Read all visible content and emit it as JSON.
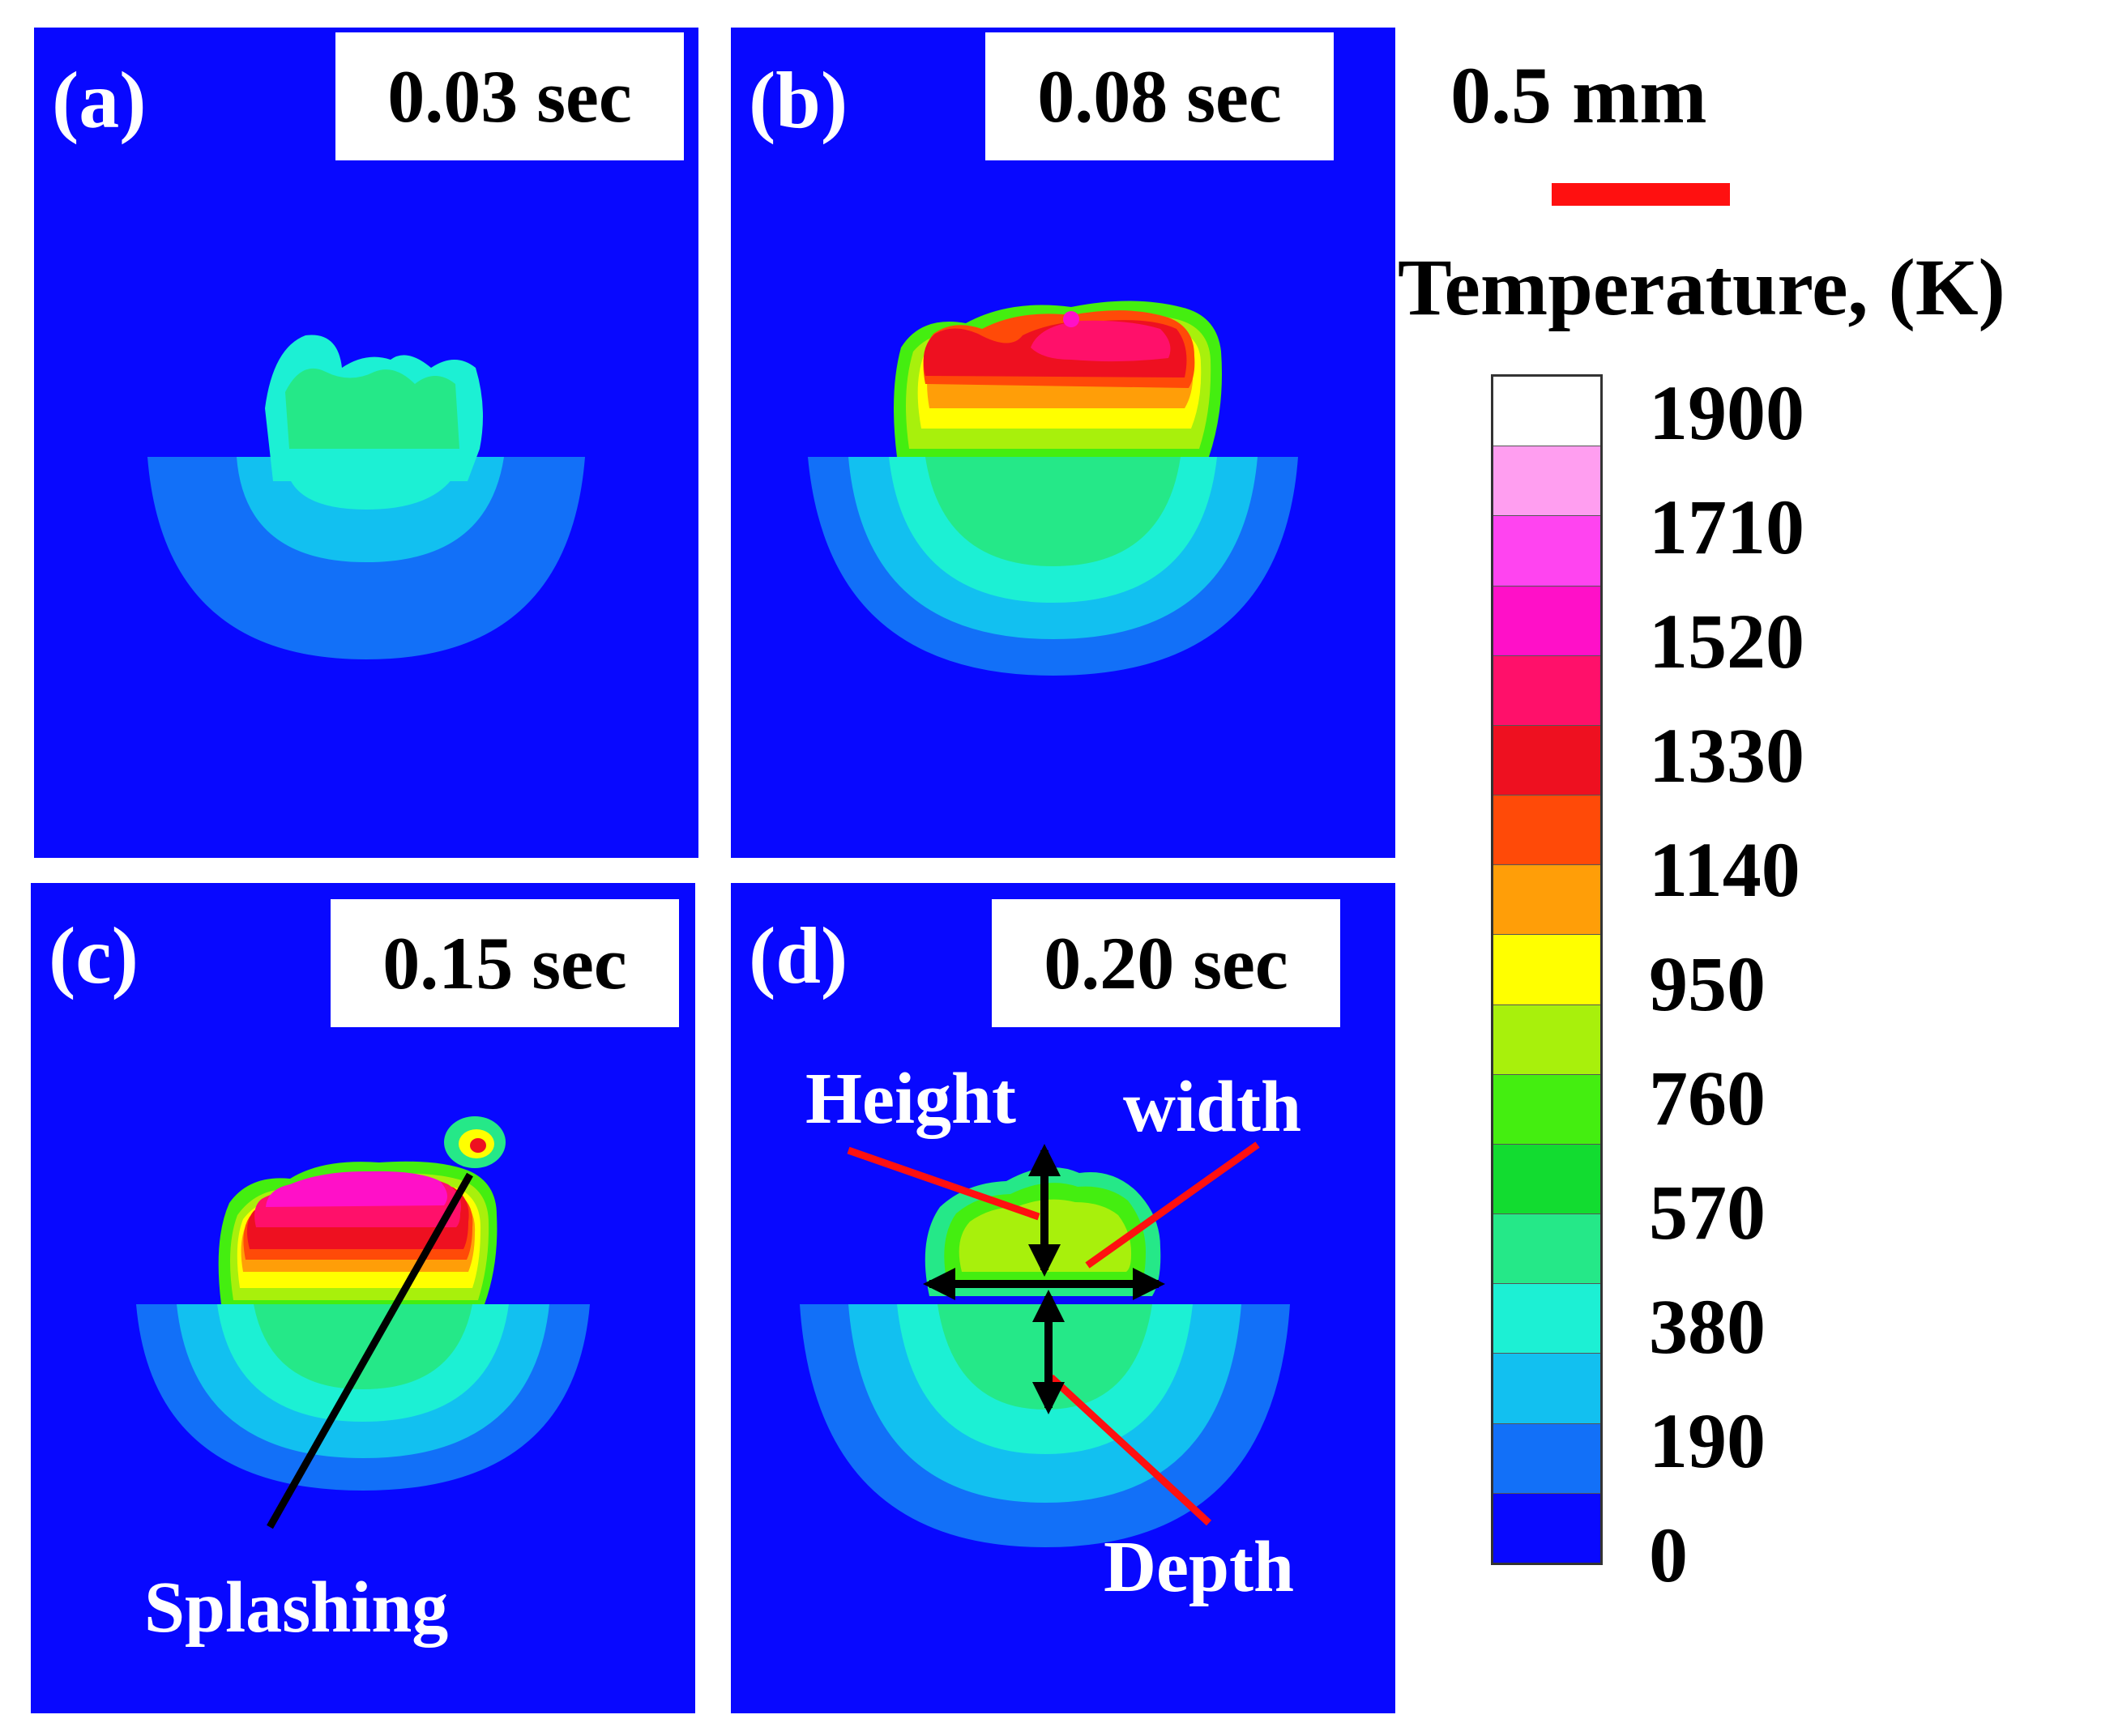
{
  "panels": [
    {
      "label": "(a)",
      "time": "0.03 sec"
    },
    {
      "label": "(b)",
      "time": "0.08 sec"
    },
    {
      "label": "(c)",
      "time": "0.15 sec"
    },
    {
      "label": "(d)",
      "time": "0.20 sec"
    }
  ],
  "annotations": {
    "splashing": "Splashing",
    "height": "Height",
    "width": "width",
    "depth": "Depth"
  },
  "scale": {
    "label": "0.5 mm",
    "bar_color": "#ff1010"
  },
  "colorbar": {
    "title": "Temperature, (K)",
    "ticks": [
      "1900",
      "1710",
      "1520",
      "1330",
      "1140",
      "950",
      "760",
      "570",
      "380",
      "190",
      "0"
    ],
    "colors": [
      "#ffffff",
      "#ff9ef0",
      "#ff44f0",
      "#ff10c8",
      "#ff106a",
      "#ee1020",
      "#ff4a08",
      "#ff9e08",
      "#ffff00",
      "#a8f00c",
      "#44ee10",
      "#12dc30",
      "#25e888",
      "#1cf0d4",
      "#12c0f0",
      "#1270f8",
      "#0808ff"
    ]
  }
}
